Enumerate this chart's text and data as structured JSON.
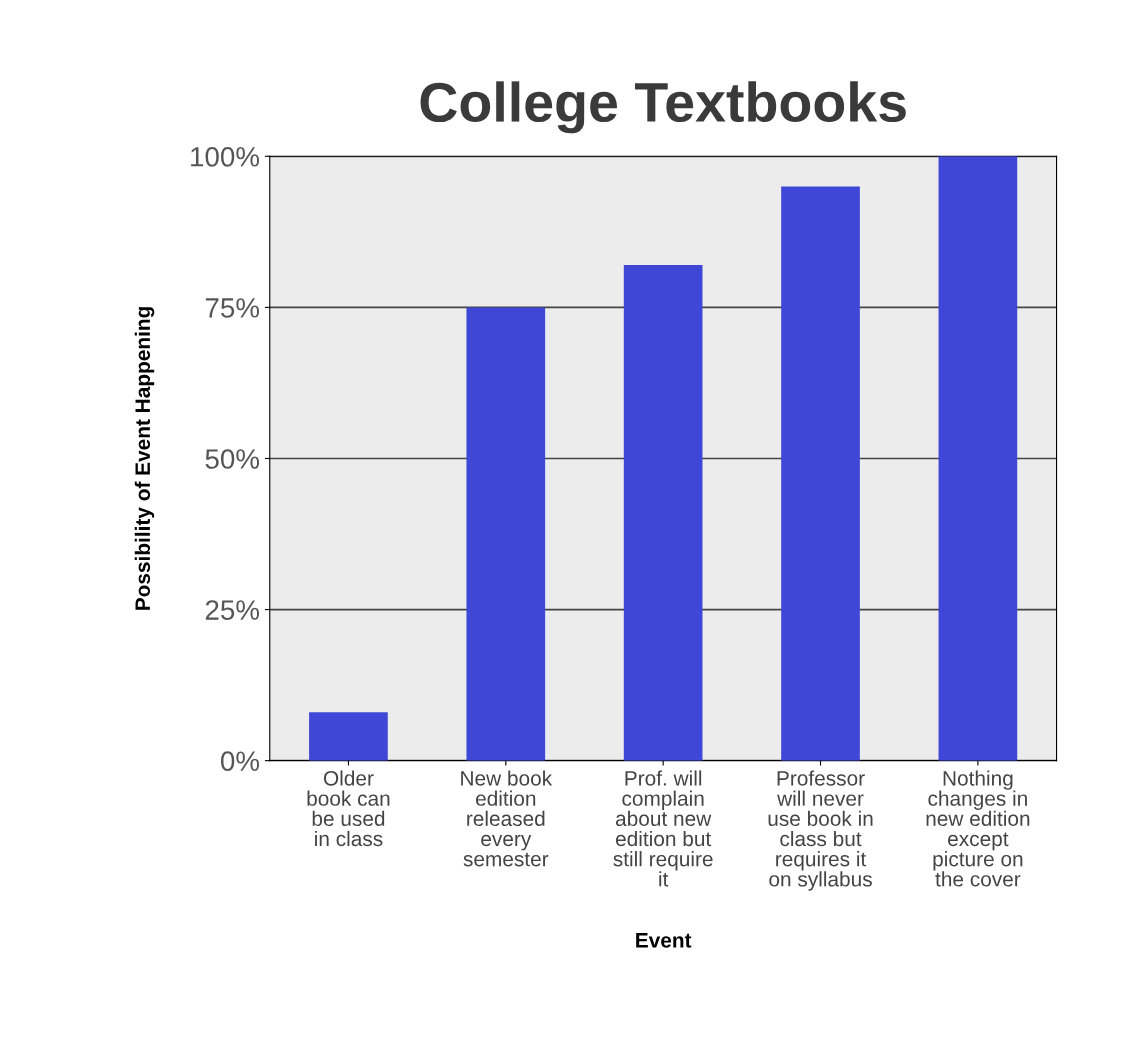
{
  "chart_data": {
    "type": "bar",
    "title": "College Textbooks",
    "xlabel": "Event",
    "ylabel": "Possibility of Event Happening",
    "categories": [
      "Older\nbook can\nbe used\nin class",
      "New book\nedition\nreleased\nevery\nsemester",
      "Prof. will\ncomplain\nabout new\nedition but\nstill require\nit",
      "Professor\nwill never\nuse book in\nclass but\nrequires it\non syllabus",
      "Nothing\nchanges in\nnew edition\nexcept\npicture on\nthe cover"
    ],
    "values": [
      8,
      75,
      82,
      95,
      100
    ],
    "color": "#3f48d6",
    "ylim": [
      0,
      100
    ],
    "yticks": [
      {
        "value": 0,
        "label": "0%"
      },
      {
        "value": 25,
        "label": "25%"
      },
      {
        "value": 50,
        "label": "50%"
      },
      {
        "value": 75,
        "label": "75%"
      },
      {
        "value": 100,
        "label": "100%"
      }
    ],
    "grid": "y",
    "legend": false
  }
}
